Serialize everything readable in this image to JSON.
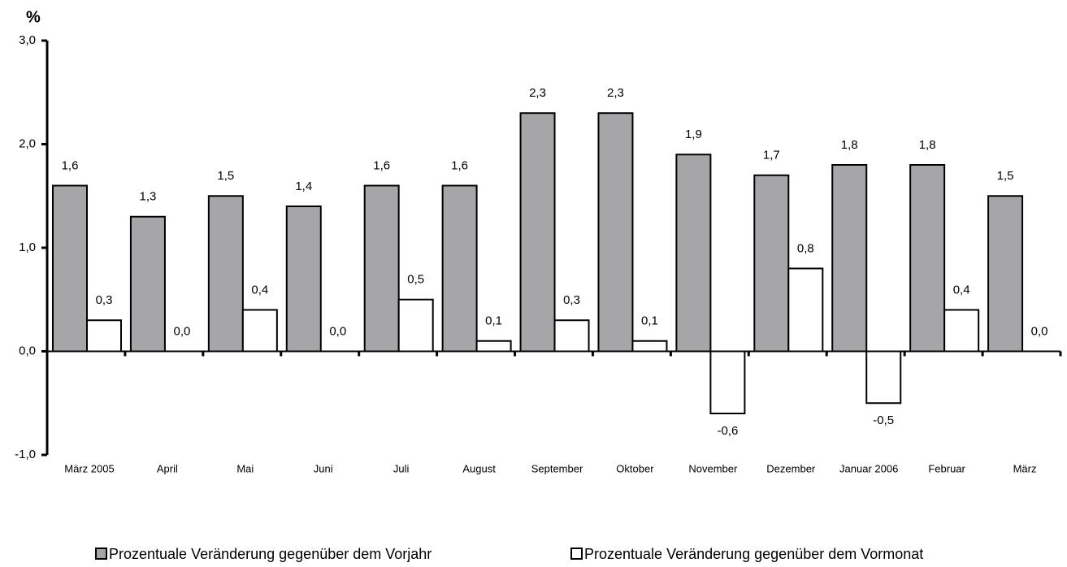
{
  "chart_data": {
    "type": "bar",
    "ylabel": "%",
    "categories": [
      "März 2005",
      "April",
      "Mai",
      "Juni",
      "Juli",
      "August",
      "September",
      "Oktober",
      "November",
      "Dezember",
      "Januar 2006",
      "Februar",
      "März"
    ],
    "series": [
      {
        "name": "Prozentuale Veränderung gegenüber dem Vorjahr",
        "color": "#a6a6a8",
        "values": [
          1.6,
          1.3,
          1.5,
          1.4,
          1.6,
          1.6,
          2.3,
          2.3,
          1.9,
          1.7,
          1.8,
          1.8,
          1.5
        ],
        "value_labels": [
          "1,6",
          "1,3",
          "1,5",
          "1,4",
          "1,6",
          "1,6",
          "2,3",
          "2,3",
          "1,9",
          "1,7",
          "1,8",
          "1,8",
          "1,5"
        ]
      },
      {
        "name": "Prozentuale Veränderung gegenüber dem Vormonat",
        "color": "#ffffff",
        "values": [
          0.3,
          0.0,
          0.4,
          0.0,
          0.5,
          0.1,
          0.3,
          0.1,
          -0.6,
          0.8,
          -0.5,
          0.4,
          0.0
        ],
        "value_labels": [
          "0,3",
          "0,0",
          "0,4",
          "0,0",
          "0,5",
          "0,1",
          "0,3",
          "0,1",
          "-0,6",
          "0,8",
          "-0,5",
          "0,4",
          "0,0"
        ]
      }
    ],
    "ylim": [
      -1,
      3
    ],
    "yticks": [
      {
        "value": -1,
        "label": "-1,0"
      },
      {
        "value": 0,
        "label": "0,0"
      },
      {
        "value": 1,
        "label": "1,0"
      },
      {
        "value": 2,
        "label": "2,0"
      },
      {
        "value": 3,
        "label": "3,0"
      }
    ],
    "grid": false
  }
}
